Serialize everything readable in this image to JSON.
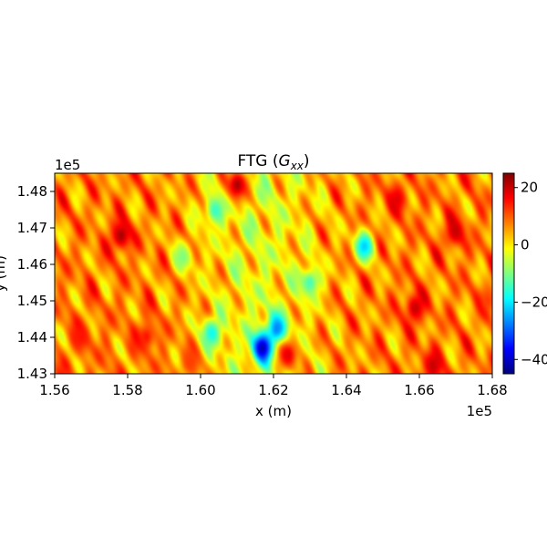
{
  "chart_data": {
    "type": "heatmap",
    "title_prefix": "FTG (",
    "title_math": "G",
    "title_sub": "xx",
    "title_suffix": ")",
    "xlabel": "x (m)",
    "ylabel": "y (m)",
    "x_offset_label": "1e5",
    "y_offset_label": "1e5",
    "xlim": [
      1.56,
      1.68
    ],
    "ylim": [
      1.43,
      1.485
    ],
    "x_ticks": [
      {
        "value": 1.56,
        "label": "1.56"
      },
      {
        "value": 1.58,
        "label": "1.58"
      },
      {
        "value": 1.6,
        "label": "1.60"
      },
      {
        "value": 1.62,
        "label": "1.62"
      },
      {
        "value": 1.64,
        "label": "1.64"
      },
      {
        "value": 1.66,
        "label": "1.66"
      },
      {
        "value": 1.68,
        "label": "1.68"
      }
    ],
    "y_ticks": [
      {
        "value": 1.43,
        "label": "1.43"
      },
      {
        "value": 1.44,
        "label": "1.44"
      },
      {
        "value": 1.45,
        "label": "1.45"
      },
      {
        "value": 1.46,
        "label": "1.46"
      },
      {
        "value": 1.47,
        "label": "1.47"
      },
      {
        "value": 1.48,
        "label": "1.48"
      }
    ],
    "colorbar": {
      "colormap": "jet",
      "range": [
        -45,
        25
      ],
      "ticks": [
        {
          "value": 20,
          "label": "20"
        },
        {
          "value": 0,
          "label": "0"
        },
        {
          "value": -20,
          "label": "−20"
        },
        {
          "value": -40,
          "label": "−40"
        }
      ]
    },
    "features": [
      {
        "x": 1.617,
        "y": 1.437,
        "value": -42
      },
      {
        "x": 1.621,
        "y": 1.442,
        "value": -28
      },
      {
        "x": 1.645,
        "y": 1.465,
        "value": -22
      },
      {
        "x": 1.603,
        "y": 1.441,
        "value": -18
      },
      {
        "x": 1.604,
        "y": 1.475,
        "value": -15
      },
      {
        "x": 1.63,
        "y": 1.455,
        "value": -14
      },
      {
        "x": 1.595,
        "y": 1.462,
        "value": -10
      },
      {
        "x": 1.578,
        "y": 1.468,
        "value": 22
      },
      {
        "x": 1.61,
        "y": 1.482,
        "value": 22
      },
      {
        "x": 1.664,
        "y": 1.432,
        "value": 20
      },
      {
        "x": 1.659,
        "y": 1.448,
        "value": 20
      },
      {
        "x": 1.67,
        "y": 1.469,
        "value": 20
      },
      {
        "x": 1.624,
        "y": 1.435,
        "value": 18
      },
      {
        "x": 1.654,
        "y": 1.478,
        "value": 18
      },
      {
        "x": 1.567,
        "y": 1.44,
        "value": 15
      },
      {
        "x": 1.585,
        "y": 1.44,
        "value": 15
      },
      {
        "x": 1.597,
        "y": 1.433,
        "value": 12
      },
      {
        "x": 1.679,
        "y": 1.45,
        "value": 12
      }
    ]
  }
}
